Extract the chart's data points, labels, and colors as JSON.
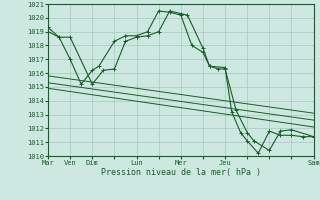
{
  "bg_color": "#cde8e0",
  "grid_color": "#a8c8c0",
  "line_color": "#1a5c2a",
  "title": "Pression niveau de la mer( hPa )",
  "ylim": [
    1010,
    1021
  ],
  "yticks": [
    1010,
    1011,
    1012,
    1013,
    1014,
    1015,
    1016,
    1017,
    1018,
    1019,
    1020,
    1021
  ],
  "xtick_labels": [
    "Mar",
    "Ven",
    "Dim",
    "",
    "Lun",
    "",
    "Mer",
    "",
    "Jeu",
    "",
    "",
    "",
    "Sam"
  ],
  "xtick_positions": [
    0,
    1,
    2,
    3,
    4,
    5,
    6,
    7,
    8,
    9,
    10,
    11,
    12
  ],
  "series1_x": [
    0,
    0.5,
    1,
    1.5,
    2,
    2.3,
    3,
    3.5,
    4,
    4.5,
    5,
    5.5,
    6,
    6.5,
    7,
    7.3,
    8,
    8.3,
    8.7,
    9,
    9.5,
    10,
    10.5,
    11,
    11.5,
    12
  ],
  "series1_y": [
    1019.3,
    1018.6,
    1017.0,
    1015.2,
    1016.2,
    1016.5,
    1018.3,
    1018.7,
    1018.7,
    1019.0,
    1020.5,
    1020.4,
    1020.2,
    1018.0,
    1017.5,
    1016.5,
    1016.4,
    1013.2,
    1011.7,
    1011.1,
    1010.2,
    1011.8,
    1011.5,
    1011.5,
    1011.4,
    1011.4
  ],
  "series2_x": [
    0,
    0.5,
    1,
    2,
    2.5,
    3,
    3.5,
    4,
    4.5,
    5,
    5.5,
    6,
    6.3,
    7,
    7.3,
    7.7,
    8,
    8.5,
    9,
    9.3,
    10,
    10.5,
    11,
    12
  ],
  "series2_y": [
    1019.0,
    1018.6,
    1018.6,
    1015.2,
    1016.2,
    1016.3,
    1018.3,
    1018.6,
    1018.7,
    1019.0,
    1020.5,
    1020.3,
    1020.2,
    1017.8,
    1016.5,
    1016.3,
    1016.3,
    1013.3,
    1011.7,
    1011.1,
    1010.4,
    1011.8,
    1011.9,
    1011.4
  ],
  "line3_x": [
    0,
    12
  ],
  "line3_y": [
    1015.8,
    1013.1
  ],
  "line4_x": [
    0,
    12
  ],
  "line4_y": [
    1015.3,
    1012.6
  ],
  "line5_x": [
    0,
    12
  ],
  "line5_y": [
    1014.9,
    1012.1
  ]
}
